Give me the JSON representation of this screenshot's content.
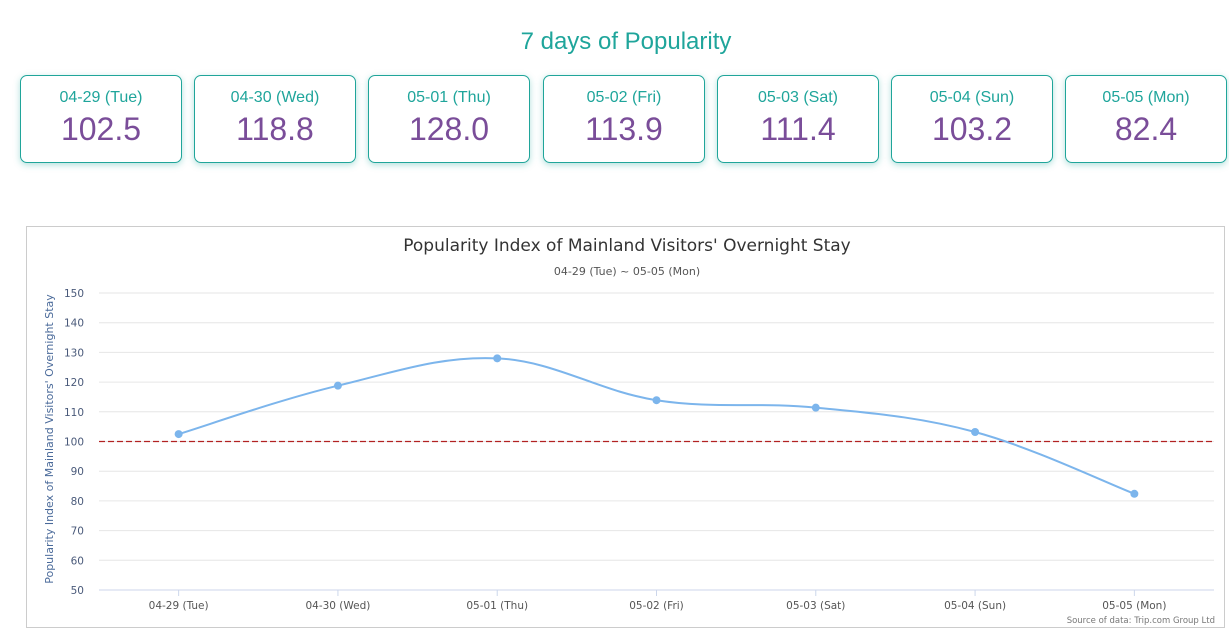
{
  "header": {
    "title": "7 days of Popularity"
  },
  "days": [
    {
      "label": "04-29 (Tue)",
      "value": "102.5"
    },
    {
      "label": "04-30 (Wed)",
      "value": "118.8"
    },
    {
      "label": "05-01 (Thu)",
      "value": "128.0"
    },
    {
      "label": "05-02 (Fri)",
      "value": "113.9"
    },
    {
      "label": "05-03 (Sat)",
      "value": "111.4"
    },
    {
      "label": "05-04 (Sun)",
      "value": "103.2"
    },
    {
      "label": "05-05 (Mon)",
      "value": "82.4"
    }
  ],
  "chart_data": {
    "type": "line",
    "title": "Popularity Index of Mainland Visitors' Overnight Stay",
    "subtitle": "04-29 (Tue) ~ 05-05 (Mon)",
    "xlabel": "",
    "ylabel": "Popularity Index of Mainland Visitors' Overnight Stay",
    "categories": [
      "04-29 (Tue)",
      "04-30 (Wed)",
      "05-01 (Thu)",
      "05-02 (Fri)",
      "05-03 (Sat)",
      "05-04 (Sun)",
      "05-05 (Mon)"
    ],
    "series": [
      {
        "values": [
          102.5,
          118.8,
          128.0,
          113.9,
          111.4,
          103.2,
          82.4
        ],
        "color": "#7cb5ec"
      }
    ],
    "ylim": [
      50,
      150
    ],
    "yticks": [
      50,
      60,
      70,
      80,
      90,
      100,
      110,
      120,
      130,
      140,
      150
    ],
    "reference_line": {
      "value": 100,
      "color": "#b22222",
      "style": "dashed"
    },
    "grid": true,
    "legend": "none",
    "credit": "Source of data: Trip.com Group Ltd"
  }
}
